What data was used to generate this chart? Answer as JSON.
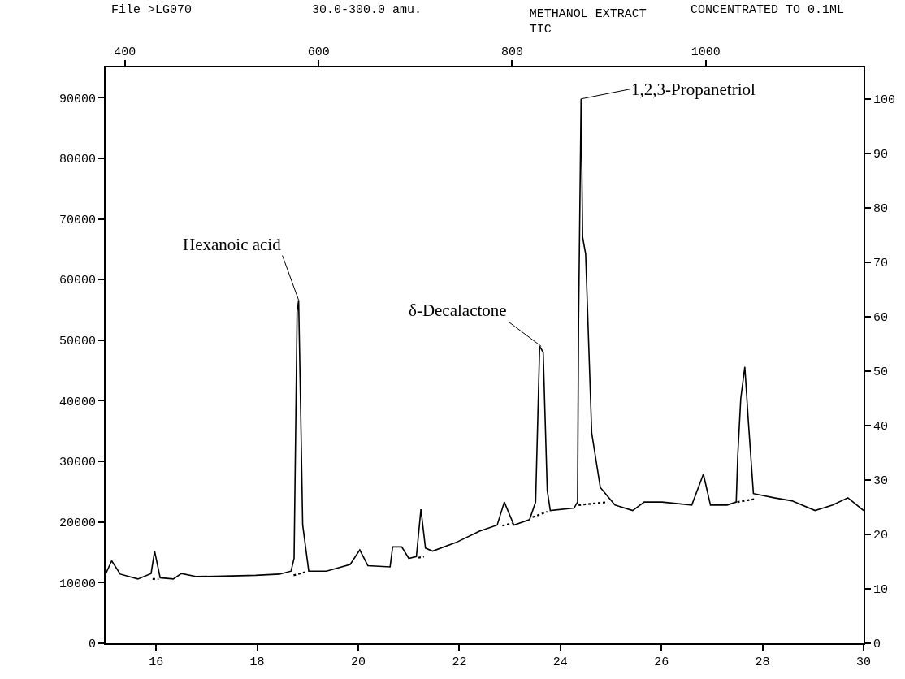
{
  "chart_data": {
    "type": "line",
    "title": "METHANOL EXTRACT",
    "subtitle": "TIC",
    "x": [
      15.0,
      15.12,
      15.29,
      15.64,
      15.9,
      15.97,
      16.08,
      16.34,
      16.5,
      16.8,
      17.5,
      17.97,
      18.44,
      18.67,
      18.73,
      18.79,
      18.82,
      18.86,
      18.9,
      19.02,
      19.37,
      19.84,
      20.03,
      20.19,
      20.63,
      20.68,
      20.86,
      21.0,
      21.15,
      21.24,
      21.33,
      21.47,
      21.93,
      22.4,
      22.75,
      22.89,
      23.08,
      23.39,
      23.51,
      23.59,
      23.66,
      23.74,
      23.8,
      24.27,
      24.34,
      24.36,
      24.41,
      24.44,
      24.5,
      24.62,
      24.79,
      25.08,
      25.43,
      25.66,
      26.01,
      26.6,
      26.83,
      26.97,
      27.3,
      27.48,
      27.51,
      27.57,
      27.65,
      27.72,
      27.82,
      28.23,
      28.58,
      29.04,
      29.39,
      29.69,
      30.0
    ],
    "series": [
      {
        "color": "#000000",
        "line_style": "solid",
        "values": [
          11400,
          13600,
          11400,
          10600,
          11500,
          15200,
          10800,
          10600,
          11500,
          11000,
          11100,
          11200,
          11400,
          11900,
          14000,
          54700,
          56600,
          38500,
          19500,
          11900,
          11900,
          13000,
          15400,
          12800,
          12600,
          15900,
          15900,
          14000,
          14300,
          22100,
          15700,
          15200,
          16600,
          18500,
          19500,
          23300,
          19500,
          20400,
          23300,
          49000,
          48000,
          25200,
          21900,
          22300,
          23300,
          52800,
          89800,
          67000,
          64200,
          34700,
          25700,
          22800,
          21900,
          23300,
          23300,
          22800,
          27900,
          22800,
          22800,
          23300,
          30900,
          40400,
          45600,
          36600,
          24700,
          24000,
          23500,
          21900,
          22800,
          24000,
          21900
        ]
      },
      {
        "color": "#000000",
        "line_style": "dotted",
        "x": [
          15.93,
          16.05,
          null,
          18.72,
          18.98,
          null,
          21.19,
          21.3,
          null,
          22.85,
          23.05,
          null,
          23.45,
          23.74,
          null,
          24.36,
          24.95,
          null,
          27.5,
          27.85
        ],
        "values": [
          10600,
          10600,
          null,
          11200,
          11800,
          null,
          14100,
          14300,
          null,
          19400,
          19800,
          null,
          20800,
          21700,
          null,
          22800,
          23300,
          null,
          23300,
          23800
        ]
      }
    ],
    "xlim": [
      15,
      30
    ],
    "xticks": [
      16,
      18,
      20,
      22,
      24,
      26,
      28,
      30
    ],
    "x2lim": [
      380,
      1163
    ],
    "x2ticks": [
      400,
      600,
      800,
      1000
    ],
    "ylim": [
      0,
      95000
    ],
    "yticks": [
      0,
      10000,
      20000,
      30000,
      40000,
      50000,
      60000,
      70000,
      80000,
      90000
    ],
    "y2lim": [
      0,
      105.8
    ],
    "y2ticks": [
      0,
      10,
      20,
      30,
      40,
      50,
      60,
      70,
      80,
      90,
      100
    ],
    "marker": "none",
    "annotations": [
      "File >LG070",
      "30.0-300.0 amu.",
      "CONCENTRATED TO 0.1ML",
      {
        "text": "Hexanoic acid",
        "x": 18.82,
        "y": 56600
      },
      {
        "text": "δ-Decalactone",
        "x": 23.62,
        "y": 49000
      },
      {
        "text": "1,2,3-Propanetriol",
        "x": 24.41,
        "y": 89800
      }
    ]
  }
}
